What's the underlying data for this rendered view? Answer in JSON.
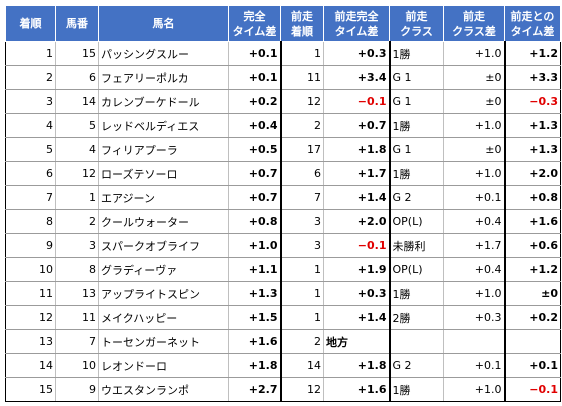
{
  "headers": [
    {
      "lines": [
        "着順"
      ]
    },
    {
      "lines": [
        "馬番"
      ]
    },
    {
      "lines": [
        "馬名"
      ]
    },
    {
      "lines": [
        "完全",
        "タイム差"
      ]
    },
    {
      "lines": [
        "前走",
        "着順"
      ]
    },
    {
      "lines": [
        "前走完全",
        "タイム差"
      ]
    },
    {
      "lines": [
        "前走",
        "クラス"
      ]
    },
    {
      "lines": [
        "前走",
        "クラス差"
      ]
    },
    {
      "lines": [
        "前走との",
        "タイム差"
      ]
    }
  ],
  "rows": [
    {
      "finish": "1",
      "number": "15",
      "name": "パッシングスルー",
      "time_diff": "+0.1",
      "prev_finish": "1",
      "prev_time_diff": "+0.3",
      "prev_class": "1勝",
      "class_diff": "+1.0",
      "diff_vs_prev": "+1.2"
    },
    {
      "finish": "2",
      "number": "6",
      "name": "フェアリーポルカ",
      "time_diff": "+0.1",
      "prev_finish": "11",
      "prev_time_diff": "+3.4",
      "prev_class": "G 1",
      "class_diff": "±0",
      "diff_vs_prev": "+3.3"
    },
    {
      "finish": "3",
      "number": "14",
      "name": "カレンブーケドール",
      "time_diff": "+0.2",
      "prev_finish": "12",
      "prev_time_diff": "−0.1",
      "prev_class": "G 1",
      "class_diff": "±0",
      "diff_vs_prev": "−0.3"
    },
    {
      "finish": "4",
      "number": "5",
      "name": "レッドベルディエス",
      "time_diff": "+0.4",
      "prev_finish": "2",
      "prev_time_diff": "+0.7",
      "prev_class": "1勝",
      "class_diff": "+1.0",
      "diff_vs_prev": "+1.3"
    },
    {
      "finish": "5",
      "number": "4",
      "name": "フィリアプーラ",
      "time_diff": "+0.5",
      "prev_finish": "17",
      "prev_time_diff": "+1.8",
      "prev_class": "G 1",
      "class_diff": "±0",
      "diff_vs_prev": "+1.3"
    },
    {
      "finish": "6",
      "number": "12",
      "name": "ローズテソーロ",
      "time_diff": "+0.7",
      "prev_finish": "6",
      "prev_time_diff": "+1.7",
      "prev_class": "1勝",
      "class_diff": "+1.0",
      "diff_vs_prev": "+2.0"
    },
    {
      "finish": "7",
      "number": "1",
      "name": "エアジーン",
      "time_diff": "+0.7",
      "prev_finish": "7",
      "prev_time_diff": "+1.4",
      "prev_class": "G 2",
      "class_diff": "+0.1",
      "diff_vs_prev": "+0.8"
    },
    {
      "finish": "8",
      "number": "2",
      "name": "クールウォーター",
      "time_diff": "+0.8",
      "prev_finish": "3",
      "prev_time_diff": "+2.0",
      "prev_class": "OP(L)",
      "class_diff": "+0.4",
      "diff_vs_prev": "+1.6"
    },
    {
      "finish": "9",
      "number": "3",
      "name": "スパークオブライフ",
      "time_diff": "+1.0",
      "prev_finish": "3",
      "prev_time_diff": "−0.1",
      "prev_class": "未勝利",
      "class_diff": "+1.7",
      "diff_vs_prev": "+0.6"
    },
    {
      "finish": "10",
      "number": "8",
      "name": "グラディーヴァ",
      "time_diff": "+1.1",
      "prev_finish": "1",
      "prev_time_diff": "+1.9",
      "prev_class": "OP(L)",
      "class_diff": "+0.4",
      "diff_vs_prev": "+1.2"
    },
    {
      "finish": "11",
      "number": "13",
      "name": "アップライトスピン",
      "time_diff": "+1.3",
      "prev_finish": "1",
      "prev_time_diff": "+0.3",
      "prev_class": "1勝",
      "class_diff": "+1.0",
      "diff_vs_prev": "±0"
    },
    {
      "finish": "12",
      "number": "11",
      "name": "メイクハッピー",
      "time_diff": "+1.5",
      "prev_finish": "1",
      "prev_time_diff": "+1.4",
      "prev_class": "2勝",
      "class_diff": "+0.3",
      "diff_vs_prev": "+0.2"
    },
    {
      "finish": "13",
      "number": "7",
      "name": "トーセンガーネット",
      "time_diff": "+1.6",
      "prev_finish": "2",
      "prev_time_diff": "地方",
      "prev_class": "",
      "class_diff": "",
      "diff_vs_prev": ""
    },
    {
      "finish": "14",
      "number": "10",
      "name": "レオンドーロ",
      "time_diff": "+1.8",
      "prev_finish": "14",
      "prev_time_diff": "+1.8",
      "prev_class": "G 2",
      "class_diff": "+0.1",
      "diff_vs_prev": "+0.1"
    },
    {
      "finish": "15",
      "number": "9",
      "name": "ウエスタンランポ",
      "time_diff": "+2.7",
      "prev_finish": "12",
      "prev_time_diff": "+1.6",
      "prev_class": "1勝",
      "class_diff": "+1.0",
      "diff_vs_prev": "−0.1"
    }
  ],
  "colors": {
    "header_bg": "#4472c4",
    "header_text": "#ffffff",
    "negative_text": "#e00000",
    "grid_line": "#9b9b9b"
  }
}
